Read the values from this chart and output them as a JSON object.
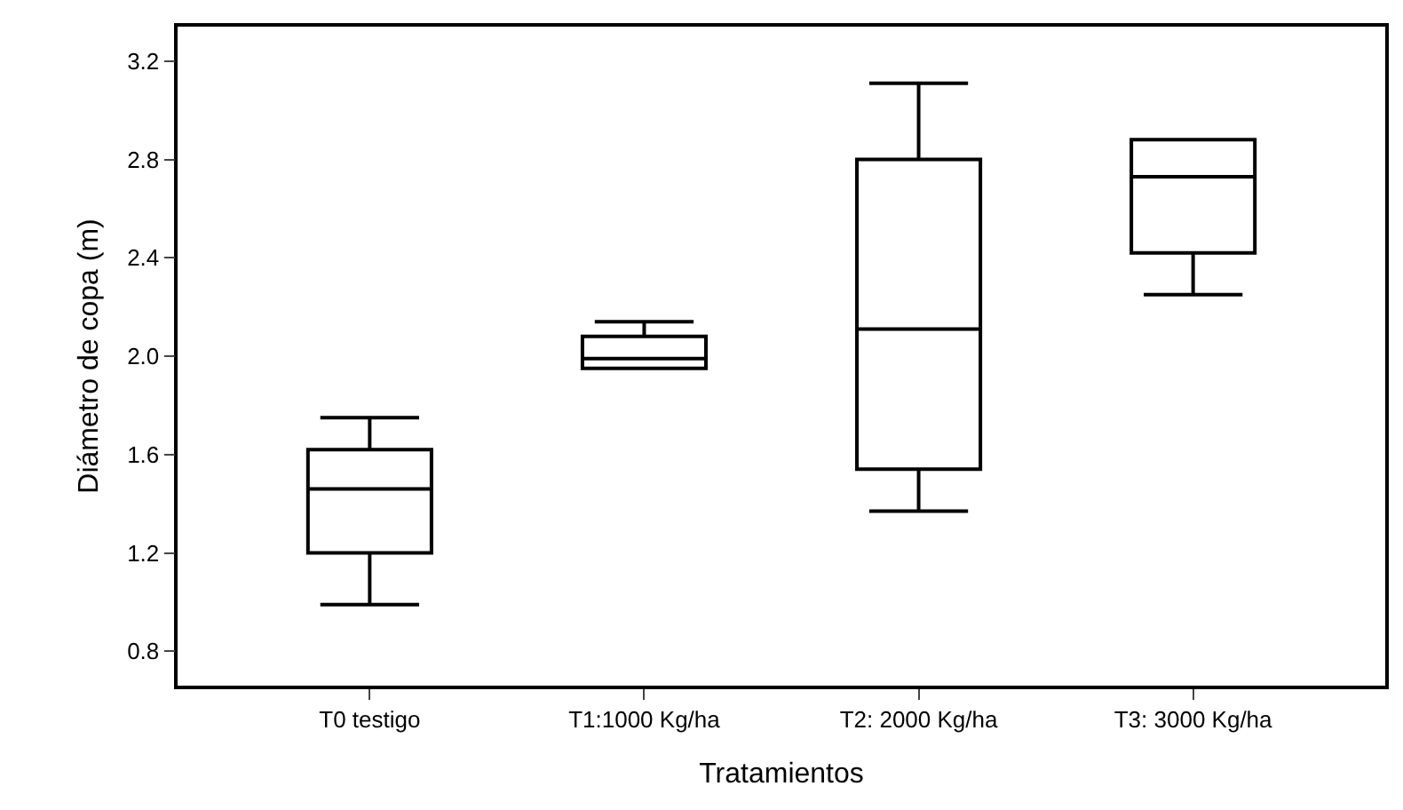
{
  "chart_data": {
    "type": "box",
    "xlabel": "Tratamientos",
    "ylabel": "Diámetro de copa (m)",
    "categories": [
      "T0 testigo",
      "T1:1000 Kg/ha",
      "T2: 2000 Kg/ha",
      "T3: 3000 Kg/ha"
    ],
    "boxes": [
      {
        "low": 0.99,
        "q1": 1.2,
        "median": 1.46,
        "q3": 1.62,
        "high": 1.75
      },
      {
        "low": 1.95,
        "q1": 1.95,
        "median": 1.99,
        "q3": 2.08,
        "high": 2.14
      },
      {
        "low": 1.37,
        "q1": 1.54,
        "median": 2.11,
        "q3": 2.8,
        "high": 3.11
      },
      {
        "low": 2.25,
        "q1": 2.42,
        "median": 2.73,
        "q3": 2.88,
        "high": 2.88
      }
    ],
    "color": "#000000",
    "ylim": [
      0.66,
      3.34
    ],
    "yticks": [
      {
        "value": 0.8,
        "label": "0.8"
      },
      {
        "value": 1.2,
        "label": "1.2"
      },
      {
        "value": 1.6,
        "label": "1.6"
      },
      {
        "value": 2.0,
        "label": "2.0"
      },
      {
        "value": 2.4,
        "label": "2.4"
      },
      {
        "value": 2.8,
        "label": "2.8"
      },
      {
        "value": 3.2,
        "label": "3.2"
      }
    ]
  }
}
